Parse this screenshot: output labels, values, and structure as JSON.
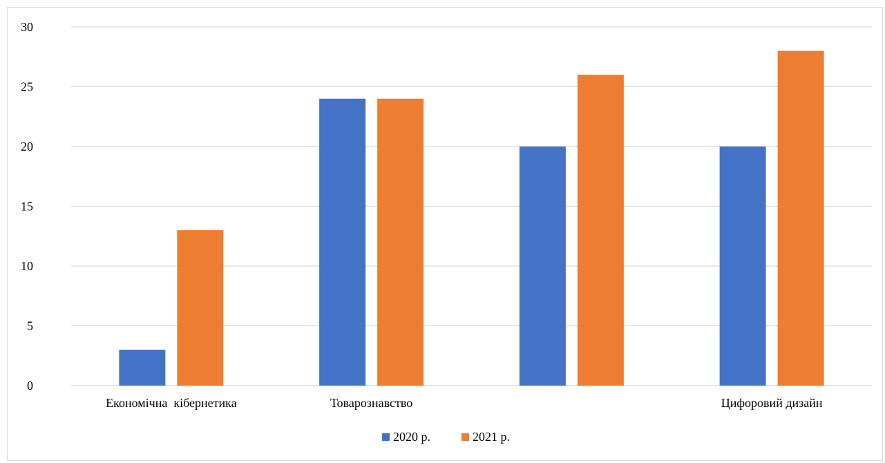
{
  "chart_data": {
    "type": "bar",
    "categories": [
      "Економічна  кібернетика",
      "Товарознавство",
      "",
      "Цифоровий дизайн"
    ],
    "series": [
      {
        "name": "2020 р.",
        "color": "#4472c4",
        "values": [
          3,
          24,
          20,
          20
        ]
      },
      {
        "name": "2021 р.",
        "color": "#ed7d31",
        "values": [
          13,
          24,
          26,
          28
        ]
      }
    ],
    "ylim": [
      0,
      30
    ],
    "yticks": [
      0,
      5,
      10,
      15,
      20,
      25,
      30
    ],
    "grid": true,
    "gridColor": "#d9d9d9",
    "legend": "bottom",
    "title": "",
    "xlabel": "",
    "ylabel": ""
  }
}
